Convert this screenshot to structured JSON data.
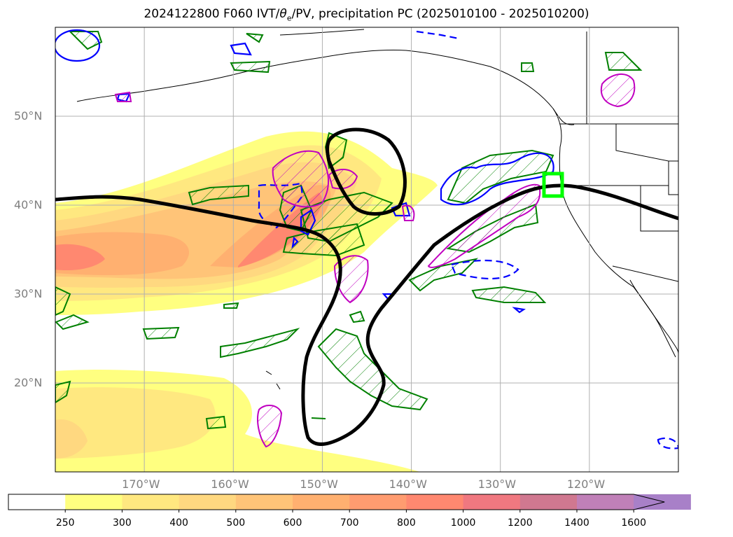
{
  "title": {
    "prefix": "2024122800 F060 IVT/",
    "theta": "θ",
    "sub": "e",
    "suffix": "/PV, precipitation PC (2025010100 - 2025010200)"
  },
  "map": {
    "lon_range": [
      -180,
      -110
    ],
    "lat_range": [
      10,
      60
    ],
    "gridlines": true,
    "lat_labels": [
      {
        "lat": 50,
        "text": "50°N"
      },
      {
        "lat": 40,
        "text": "40°N"
      },
      {
        "lat": 30,
        "text": "30°N"
      },
      {
        "lat": 20,
        "text": "20°N"
      }
    ],
    "lon_labels": [
      {
        "lon": -170,
        "text": "170°W"
      },
      {
        "lon": -160,
        "text": "160°W"
      },
      {
        "lon": -150,
        "text": "150°W"
      },
      {
        "lon": -140,
        "text": "140°W"
      },
      {
        "lon": -130,
        "text": "130°W"
      },
      {
        "lon": -120,
        "text": "120°W"
      }
    ],
    "highlight_box_color": "#00ff00",
    "pv_contour_color": "#000000",
    "theta_pos_color": "#008000",
    "theta_neg_color": "#0000ff",
    "precip_color": "#c000c0"
  },
  "colorbar": {
    "levels": [
      "250",
      "300",
      "400",
      "500",
      "600",
      "700",
      "800",
      "1000",
      "1200",
      "1400",
      "1600"
    ],
    "colors": [
      "#ffff80",
      "#ffe880",
      "#ffd880",
      "#ffc478",
      "#ffb070",
      "#ff9c70",
      "#ff8870",
      "#f07880",
      "#d07890",
      "#c080b8",
      "#a880c8"
    ],
    "extend": "max"
  }
}
